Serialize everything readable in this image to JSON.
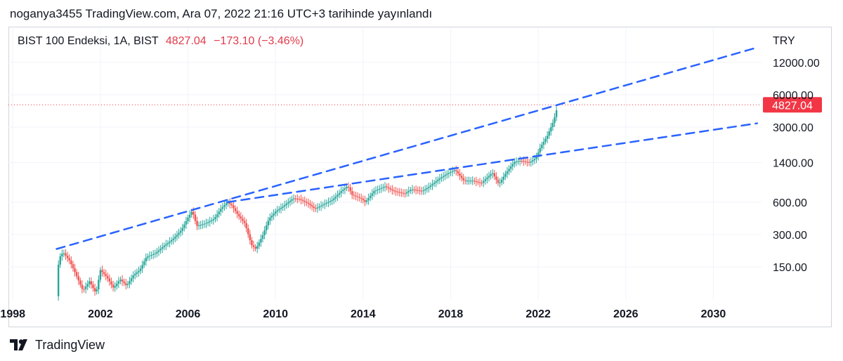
{
  "header": {
    "text": "noganya3455 TradingView.com, Ara 07, 2022 21:16 UTC+3 tarihinde yayınlandı"
  },
  "legend": {
    "symbol": "BIST 100 Endeksi, 1A, BIST",
    "last": "4827.04",
    "change": "−173.10 (−3.46%)"
  },
  "footer": {
    "brand": "TradingView"
  },
  "colors": {
    "up": "#26a69a",
    "down": "#ef5350",
    "trend": "#2962ff",
    "price_line": "#f23645"
  },
  "chart_data": {
    "type": "line",
    "scale": "log",
    "currency": "TRY",
    "current_price": 4827.04,
    "current_price_label": "4827.04",
    "x_ticks": [
      "1998",
      "2002",
      "2006",
      "2010",
      "2014",
      "2018",
      "2022",
      "2026",
      "2030"
    ],
    "y_ticks": [
      "12000.00",
      "6000.00",
      "3000.00",
      "1400.00",
      "600.00",
      "300.00",
      "150.00"
    ],
    "ylim": [
      75,
      25000
    ],
    "xlim": [
      1997.8,
      2032.2
    ],
    "series": [
      {
        "values": [
          [
            2000.0,
            80
          ],
          [
            2000.1,
            180
          ],
          [
            2000.3,
            205
          ],
          [
            2000.6,
            170
          ],
          [
            2000.9,
            125
          ],
          [
            2001.2,
            90
          ],
          [
            2001.5,
            110
          ],
          [
            2001.8,
            85
          ],
          [
            2002.0,
            140
          ],
          [
            2002.3,
            120
          ],
          [
            2002.6,
            95
          ],
          [
            2002.9,
            115
          ],
          [
            2003.2,
            100
          ],
          [
            2003.5,
            125
          ],
          [
            2003.8,
            140
          ],
          [
            2004.1,
            185
          ],
          [
            2004.5,
            200
          ],
          [
            2004.9,
            235
          ],
          [
            2005.3,
            270
          ],
          [
            2005.7,
            330
          ],
          [
            2006.0,
            430
          ],
          [
            2006.2,
            500
          ],
          [
            2006.4,
            360
          ],
          [
            2006.8,
            380
          ],
          [
            2007.2,
            420
          ],
          [
            2007.5,
            520
          ],
          [
            2007.8,
            600
          ],
          [
            2008.0,
            560
          ],
          [
            2008.3,
            450
          ],
          [
            2008.6,
            380
          ],
          [
            2008.9,
            240
          ],
          [
            2009.1,
            220
          ],
          [
            2009.4,
            290
          ],
          [
            2009.7,
            420
          ],
          [
            2010.0,
            490
          ],
          [
            2010.4,
            560
          ],
          [
            2010.8,
            650
          ],
          [
            2011.1,
            640
          ],
          [
            2011.5,
            580
          ],
          [
            2011.8,
            520
          ],
          [
            2012.1,
            560
          ],
          [
            2012.6,
            630
          ],
          [
            2013.0,
            760
          ],
          [
            2013.3,
            850
          ],
          [
            2013.5,
            700
          ],
          [
            2013.9,
            650
          ],
          [
            2014.1,
            600
          ],
          [
            2014.5,
            760
          ],
          [
            2015.0,
            840
          ],
          [
            2015.4,
            760
          ],
          [
            2015.9,
            720
          ],
          [
            2016.2,
            790
          ],
          [
            2016.7,
            760
          ],
          [
            2017.0,
            830
          ],
          [
            2017.5,
            1000
          ],
          [
            2017.9,
            1120
          ],
          [
            2018.2,
            1200
          ],
          [
            2018.6,
            950
          ],
          [
            2019.0,
            950
          ],
          [
            2019.4,
            900
          ],
          [
            2019.9,
            1130
          ],
          [
            2020.2,
            880
          ],
          [
            2020.5,
            1100
          ],
          [
            2020.9,
            1420
          ],
          [
            2021.2,
            1460
          ],
          [
            2021.6,
            1400
          ],
          [
            2021.9,
            1550
          ],
          [
            2022.1,
            1950
          ],
          [
            2022.4,
            2450
          ],
          [
            2022.7,
            3400
          ],
          [
            2022.9,
            4827.04
          ]
        ]
      }
    ],
    "trendlines": [
      {
        "x": [
          2000.0,
          2032.0
        ],
        "y": [
          220,
          16500
        ]
      },
      {
        "x": [
          2007.8,
          2032.0
        ],
        "y": [
          600,
          3250
        ]
      }
    ]
  }
}
